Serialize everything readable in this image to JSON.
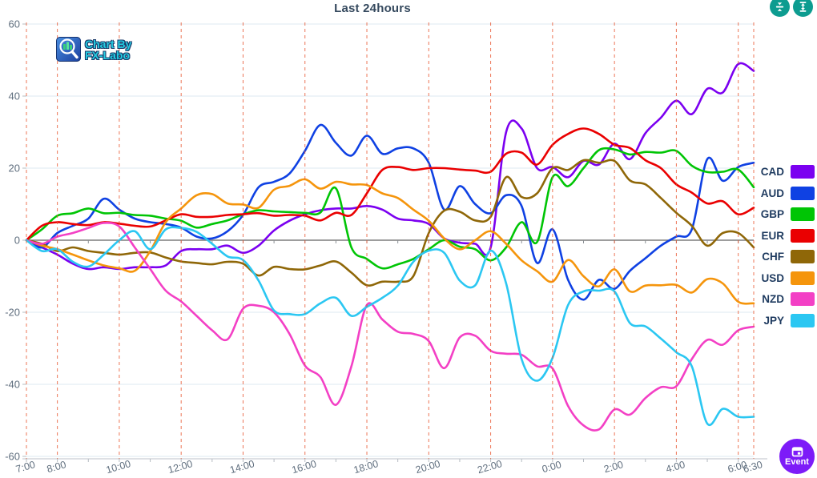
{
  "title": "Last 24hours",
  "logo": {
    "line1": "Chart By",
    "line2": "FX-Labo"
  },
  "toolbar": {
    "buttons": [
      {
        "icon": "collapse-vertical-icon",
        "color": "#0d9c90"
      },
      {
        "icon": "expand-vertical-icon",
        "color": "#0d9c90"
      }
    ]
  },
  "event_button": {
    "label": "Event",
    "icon": "calendar-icon",
    "color": "#7d1bf8"
  },
  "colors": {
    "title_text": "#35495e",
    "legend_text": "#1e3a5f",
    "vertical_grid": "#e8532c",
    "horizontal_grid": "#dde8f2",
    "zero_line": "#7d7d7d",
    "axis_labels": "#5f6e7e",
    "tool_button": "#0d9c90",
    "event_button": "#7d1bf8",
    "logo_text": "#25cbe0"
  },
  "chart_data": {
    "type": "line",
    "title": "Last 24hours",
    "xlabel": "",
    "ylabel": "",
    "ylim": [
      -60,
      60
    ],
    "y_ticks": [
      60,
      40,
      20,
      0,
      -20,
      -40,
      -60
    ],
    "x_start_hour": 7,
    "x_end_hour": 30.5,
    "sample_interval_hours": 0.5,
    "grid": "vertical-dashed-red, horizontal-light",
    "legend_position": "right",
    "x_ticks": [
      {
        "label": "7:00",
        "hour": 7
      },
      {
        "label": "8:00",
        "hour": 8
      },
      {
        "label": "10:00",
        "hour": 10
      },
      {
        "label": "12:00",
        "hour": 12
      },
      {
        "label": "14:00",
        "hour": 14
      },
      {
        "label": "16:00",
        "hour": 16
      },
      {
        "label": "18:00",
        "hour": 18
      },
      {
        "label": "20:00",
        "hour": 20
      },
      {
        "label": "22:00",
        "hour": 22
      },
      {
        "label": "0:00",
        "hour": 24
      },
      {
        "label": "2:00",
        "hour": 26
      },
      {
        "label": "4:00",
        "hour": 28
      },
      {
        "label": "6:00",
        "hour": 30
      },
      {
        "label": "6:30",
        "hour": 30.5
      }
    ],
    "series": [
      {
        "name": "CAD",
        "color": "#7b00f0",
        "values": [
          0,
          -2,
          -4,
          -6.5,
          -8,
          -7.5,
          -8,
          -7.5,
          -7.5,
          -7,
          -3,
          -2.5,
          -2.5,
          -1.5,
          -3.5,
          -1.5,
          2.7,
          5.4,
          7.2,
          8.3,
          8.8,
          8.8,
          9.5,
          8.5,
          6,
          5.5,
          4.5,
          0.5,
          -0.7,
          -1,
          -2,
          30,
          31,
          20,
          20.3,
          17.5,
          22,
          21,
          26.8,
          22.5,
          29.7,
          34,
          38.7,
          35,
          42,
          41,
          48.9,
          47
        ]
      },
      {
        "name": "AUD",
        "color": "#0f41e3",
        "values": [
          0,
          -2,
          2,
          4,
          6,
          11.5,
          8.5,
          6,
          5,
          4.5,
          3.5,
          1,
          0.5,
          2.5,
          7,
          14.7,
          16.2,
          18.5,
          24.8,
          32,
          27,
          23.5,
          29,
          24,
          25.5,
          25.5,
          21.5,
          8.5,
          15,
          10,
          7.5,
          12.5,
          9.5,
          -6.3,
          3,
          -11,
          -16.5,
          -11,
          -13.5,
          -8.5,
          -5,
          -1.5,
          1,
          3,
          22.5,
          16.5,
          20.3,
          21.5
        ]
      },
      {
        "name": "GBP",
        "color": "#00c505",
        "values": [
          0,
          3,
          6.8,
          7.5,
          8.8,
          7.5,
          7.6,
          7,
          6.8,
          6,
          5.4,
          3.5,
          4.5,
          5.5,
          7.2,
          8.3,
          8,
          7.8,
          7.6,
          7.7,
          14.4,
          -2,
          -5.2,
          -7.8,
          -6.7,
          -5.2,
          -2.5,
          0,
          -1.8,
          -2.5,
          -5.6,
          -2,
          5,
          -0.5,
          17.5,
          15,
          20,
          25,
          25.2,
          23.8,
          24.5,
          24.3,
          24.8,
          20.7,
          18.9,
          19,
          19.6,
          14.7
        ]
      },
      {
        "name": "EUR",
        "color": "#ea0001",
        "values": [
          0,
          4,
          5,
          4.5,
          4.2,
          5,
          4.6,
          4,
          3.8,
          5.5,
          7.2,
          6.5,
          6.5,
          7,
          7.2,
          7.5,
          6.8,
          7,
          6.8,
          5.5,
          7.6,
          7,
          13,
          19.5,
          20.3,
          19.5,
          20,
          20,
          19.6,
          19.3,
          19,
          24,
          24.3,
          21,
          26.5,
          29.5,
          31,
          29.5,
          26.5,
          25.6,
          22.2,
          20,
          15.5,
          13.2,
          10.2,
          10.8,
          7.2,
          9
        ]
      },
      {
        "name": "CHF",
        "color": "#8f6708",
        "values": [
          0,
          -1,
          -3,
          -2,
          -3,
          -3.5,
          -4,
          -3.5,
          -3.4,
          -4.8,
          -5.9,
          -6.3,
          -6.7,
          -6,
          -6.5,
          -9.8,
          -7.4,
          -8,
          -8.1,
          -7,
          -5.9,
          -9,
          -12.5,
          -11.5,
          -11.5,
          -10,
          2,
          8.2,
          7.9,
          5.5,
          6.5,
          17.5,
          12,
          13,
          20,
          19.5,
          22.2,
          21.5,
          22,
          16.6,
          15.5,
          11.7,
          7.6,
          4,
          -1.5,
          2,
          2,
          -2
        ]
      },
      {
        "name": "USD",
        "color": "#f5950c",
        "values": [
          0,
          -1.5,
          -2.5,
          -4,
          -5.6,
          -7,
          -7.8,
          -8.5,
          -3,
          5,
          8.8,
          12.5,
          12.8,
          10.2,
          9.9,
          9,
          14,
          15.1,
          16.9,
          14.3,
          16.2,
          15.5,
          15.3,
          13,
          11.7,
          8.5,
          5.4,
          0.5,
          -2.5,
          0,
          2.5,
          -1,
          -5.6,
          -8.6,
          -11.5,
          -5.5,
          -10,
          -12.8,
          -8.1,
          -14.2,
          -12.6,
          -12.5,
          -12.4,
          -14.5,
          -10.8,
          -12,
          -17.1,
          -17.5
        ]
      },
      {
        "name": "NZD",
        "color": "#f340c5",
        "values": [
          0,
          -1,
          1,
          2,
          3.4,
          4.8,
          3.8,
          -2,
          -8,
          -14,
          -17,
          -21,
          -25,
          -27.5,
          -19,
          -18.2,
          -20,
          -26,
          -34.8,
          -38,
          -45.7,
          -35,
          -18,
          -22,
          -25.4,
          -26,
          -28,
          -35.5,
          -27,
          -26.5,
          -30.7,
          -31.5,
          -31.8,
          -35,
          -35.6,
          -46,
          -51.4,
          -52.5,
          -47,
          -48.4,
          -43.8,
          -40.8,
          -40.5,
          -33,
          -27.7,
          -29,
          -25,
          -24
        ]
      },
      {
        "name": "JPY",
        "color": "#2bc7f2",
        "values": [
          0,
          -3,
          -2.5,
          -6,
          -7.3,
          -4,
          0,
          2.5,
          -2.5,
          3,
          3.4,
          2.3,
          -1,
          -4.5,
          -5.5,
          -11.2,
          -19.5,
          -20.5,
          -20.5,
          -17.5,
          -16,
          -21,
          -18.5,
          -16,
          -12.6,
          -6,
          -2.9,
          -3.5,
          -11.2,
          -12.5,
          -2.9,
          -12,
          -33,
          -39,
          -32.6,
          -18,
          -14.2,
          -14,
          -14.2,
          -23,
          -23.9,
          -27.3,
          -31.1,
          -35,
          -50.9,
          -46.8,
          -49,
          -49
        ]
      }
    ]
  }
}
